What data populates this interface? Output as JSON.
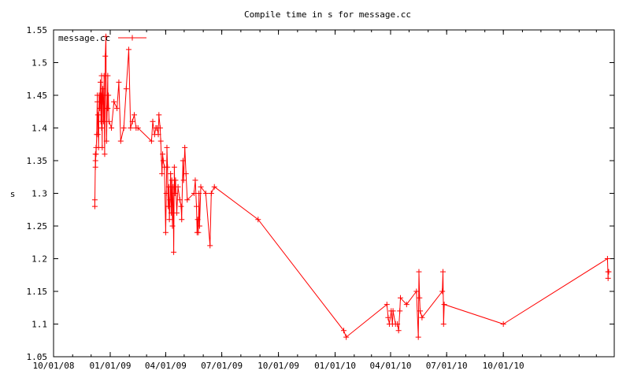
{
  "chart_data": {
    "type": "line",
    "title": "Compile time in s for message.cc",
    "xlabel": "",
    "ylabel": "s",
    "x_ticks": [
      "10/01/08",
      "01/01/09",
      "04/01/09",
      "07/01/09",
      "10/01/09",
      "01/01/10",
      "04/01/10",
      "07/01/10",
      "10/01/10"
    ],
    "y_ticks": [
      "1.05",
      "1.1",
      "1.15",
      "1.2",
      "1.25",
      "1.3",
      "1.35",
      "1.4",
      "1.45",
      "1.5",
      "1.55"
    ],
    "xlim": [
      "2008-10-01",
      "2011-03-30"
    ],
    "ylim": [
      1.05,
      1.55
    ],
    "grid": false,
    "legend_position": "top-left",
    "line_color": "#ff0000",
    "series": [
      {
        "name": "message.cc",
        "x": [
          "2008-12-07",
          "2008-12-07",
          "2008-12-08",
          "2008-12-08",
          "2008-12-08",
          "2008-12-09",
          "2008-12-09",
          "2008-12-10",
          "2008-12-11",
          "2008-12-11",
          "2008-12-12",
          "2008-12-12",
          "2008-12-13",
          "2008-12-14",
          "2008-12-15",
          "2008-12-16",
          "2008-12-17",
          "2008-12-17",
          "2008-12-18",
          "2008-12-18",
          "2008-12-19",
          "2008-12-19",
          "2008-12-20",
          "2008-12-21",
          "2008-12-22",
          "2008-12-22",
          "2008-12-23",
          "2008-12-24",
          "2008-12-25",
          "2008-12-26",
          "2008-12-27",
          "2008-12-28",
          "2008-12-28",
          "2008-12-29",
          "2008-12-30",
          "2009-01-03",
          "2009-01-07",
          "2009-01-12",
          "2009-01-15",
          "2009-01-18",
          "2009-01-23",
          "2009-01-27",
          "2009-01-31",
          "2009-02-03",
          "2009-02-06",
          "2009-02-09",
          "2009-02-12",
          "2009-02-15",
          "2009-03-09",
          "2009-03-11",
          "2009-03-14",
          "2009-03-16",
          "2009-03-18",
          "2009-03-20",
          "2009-03-21",
          "2009-03-23",
          "2009-03-24",
          "2009-03-26",
          "2009-03-27",
          "2009-03-28",
          "2009-03-30",
          "2009-04-01",
          "2009-04-02",
          "2009-04-03",
          "2009-04-04",
          "2009-04-05",
          "2009-04-06",
          "2009-04-07",
          "2009-04-08",
          "2009-04-09",
          "2009-04-10",
          "2009-04-11",
          "2009-04-12",
          "2009-04-13",
          "2009-04-14",
          "2009-04-15",
          "2009-04-16",
          "2009-04-17",
          "2009-04-19",
          "2009-04-21",
          "2009-04-24",
          "2009-04-26",
          "2009-04-27",
          "2009-04-29",
          "2009-04-30",
          "2009-05-02",
          "2009-05-04",
          "2009-05-06",
          "2009-05-17",
          "2009-05-19",
          "2009-05-21",
          "2009-05-22",
          "2009-05-23",
          "2009-05-24",
          "2009-05-25",
          "2009-05-26",
          "2009-05-28",
          "2009-06-05",
          "2009-06-12",
          "2009-06-14",
          "2009-06-19",
          "2009-08-29",
          "2010-01-15",
          "2010-01-19",
          "2010-03-26",
          "2010-03-28",
          "2010-03-30",
          "2010-04-02",
          "2010-04-04",
          "2010-04-05",
          "2010-04-09",
          "2010-04-12",
          "2010-04-14",
          "2010-04-16",
          "2010-04-17",
          "2010-04-27",
          "2010-05-13",
          "2010-05-16",
          "2010-05-17",
          "2010-05-18",
          "2010-05-19",
          "2010-05-22",
          "2010-06-24",
          "2010-06-25",
          "2010-06-26",
          "2010-06-27",
          "2010-10-01",
          "2011-03-19",
          "2011-03-20",
          "2011-03-20",
          "2011-03-21"
        ],
        "y": [
          1.29,
          1.28,
          1.36,
          1.35,
          1.34,
          1.37,
          1.36,
          1.39,
          1.45,
          1.44,
          1.39,
          1.42,
          1.37,
          1.45,
          1.43,
          1.47,
          1.41,
          1.45,
          1.4,
          1.48,
          1.37,
          1.44,
          1.46,
          1.41,
          1.48,
          1.45,
          1.36,
          1.51,
          1.54,
          1.38,
          1.43,
          1.48,
          1.43,
          1.45,
          1.41,
          1.4,
          1.44,
          1.43,
          1.47,
          1.38,
          1.4,
          1.46,
          1.52,
          1.4,
          1.41,
          1.42,
          1.4,
          1.4,
          1.38,
          1.41,
          1.39,
          1.4,
          1.4,
          1.39,
          1.42,
          1.4,
          1.38,
          1.33,
          1.36,
          1.35,
          1.34,
          1.24,
          1.3,
          1.37,
          1.34,
          1.28,
          1.31,
          1.26,
          1.29,
          1.33,
          1.27,
          1.32,
          1.25,
          1.31,
          1.21,
          1.34,
          1.3,
          1.32,
          1.27,
          1.31,
          1.29,
          1.28,
          1.26,
          1.35,
          1.32,
          1.37,
          1.33,
          1.29,
          1.3,
          1.32,
          1.28,
          1.24,
          1.26,
          1.24,
          1.3,
          1.25,
          1.31,
          1.3,
          1.22,
          1.3,
          1.31,
          1.26,
          1.09,
          1.08,
          1.13,
          1.11,
          1.1,
          1.12,
          1.1,
          1.12,
          1.1,
          1.1,
          1.09,
          1.12,
          1.14,
          1.13,
          1.15,
          1.08,
          1.18,
          1.14,
          1.12,
          1.11,
          1.15,
          1.18,
          1.1,
          1.13,
          1.1,
          1.2,
          1.17,
          1.18,
          1.18
        ]
      }
    ]
  }
}
